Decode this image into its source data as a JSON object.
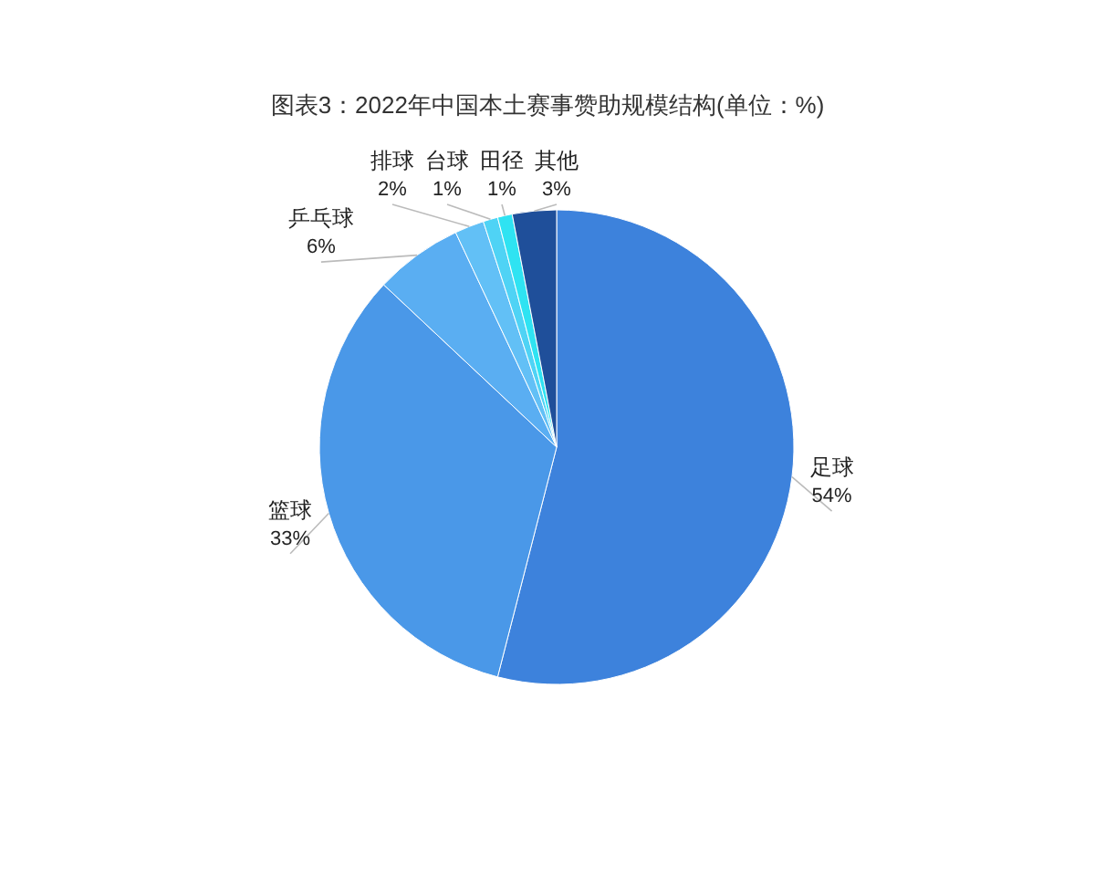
{
  "chart_data": {
    "type": "pie",
    "title": "图表3：2022年中国本土赛事赞助规模结构(单位：%)",
    "categories": [
      "足球",
      "篮球",
      "乒乓球",
      "排球",
      "台球",
      "田径",
      "其他"
    ],
    "values": [
      54,
      33,
      6,
      2,
      1,
      1,
      3
    ],
    "colors": [
      "#3d82dc",
      "#4a98e8",
      "#5aaef2",
      "#62c0f6",
      "#4fd3f5",
      "#2fe3f2",
      "#1f4f9a"
    ],
    "value_labels": [
      "54%",
      "33%",
      "6%",
      "2%",
      "1%",
      "1%",
      "3%"
    ]
  }
}
